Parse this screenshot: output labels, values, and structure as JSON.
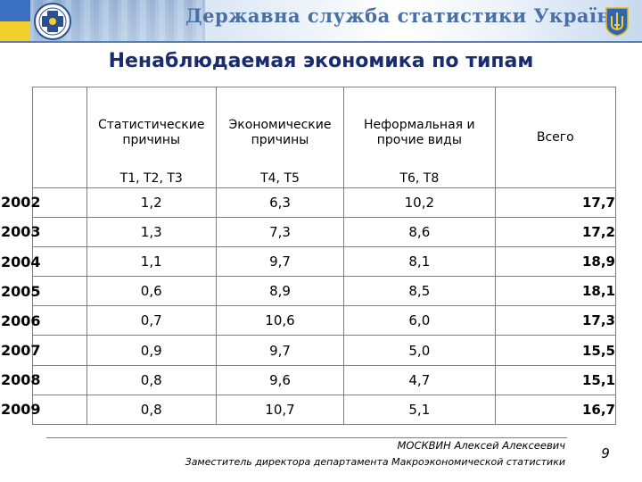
{
  "header": {
    "agency_title": "Державна служба статистики України",
    "logo_icon": "statistics-service-emblem-icon",
    "coat_of_arms_icon": "trident-icon",
    "colors": {
      "banner_text": "#4a6fa5",
      "title": "#1a2c6e",
      "flag_blue": "#3b6fc0",
      "flag_yellow": "#f2cf2a"
    }
  },
  "slide_title": "Ненаблюдаемая экономика по типам",
  "table": {
    "columns": [
      {
        "label": "Статистические причины",
        "codes": "T1, T2, T3"
      },
      {
        "label": "Экономические причины",
        "codes": "T4, T5"
      },
      {
        "label": "Неформальная и прочие виды",
        "codes": "T6, T8"
      }
    ],
    "total_label": "Всего",
    "rows": [
      {
        "year": "2002",
        "values": [
          "1,2",
          "6,3",
          "10,2"
        ],
        "total": "17,7"
      },
      {
        "year": "2003",
        "values": [
          "1,3",
          "7,3",
          "8,6"
        ],
        "total": "17,2"
      },
      {
        "year": "2004",
        "values": [
          "1,1",
          "9,7",
          "8,1"
        ],
        "total": "18,9"
      },
      {
        "year": "2005",
        "values": [
          "0,6",
          "8,9",
          "8,5"
        ],
        "total": "18,1"
      },
      {
        "year": "2006",
        "values": [
          "0,7",
          "10,6",
          "6,0"
        ],
        "total": "17,3"
      },
      {
        "year": "2007",
        "values": [
          "0,9",
          "9,7",
          "5,0"
        ],
        "total": "15,5"
      },
      {
        "year": "2008",
        "values": [
          "0,8",
          "9,6",
          "4,7"
        ],
        "total": "15,1"
      },
      {
        "year": "2009",
        "values": [
          "0,8",
          "10,7",
          "5,1"
        ],
        "total": "16,7"
      }
    ]
  },
  "footer": {
    "name": "МОСКВИН Алексей Алексеевич",
    "role": "Заместитель директора департамента Макроэкономической статистики",
    "page_number": "9"
  }
}
